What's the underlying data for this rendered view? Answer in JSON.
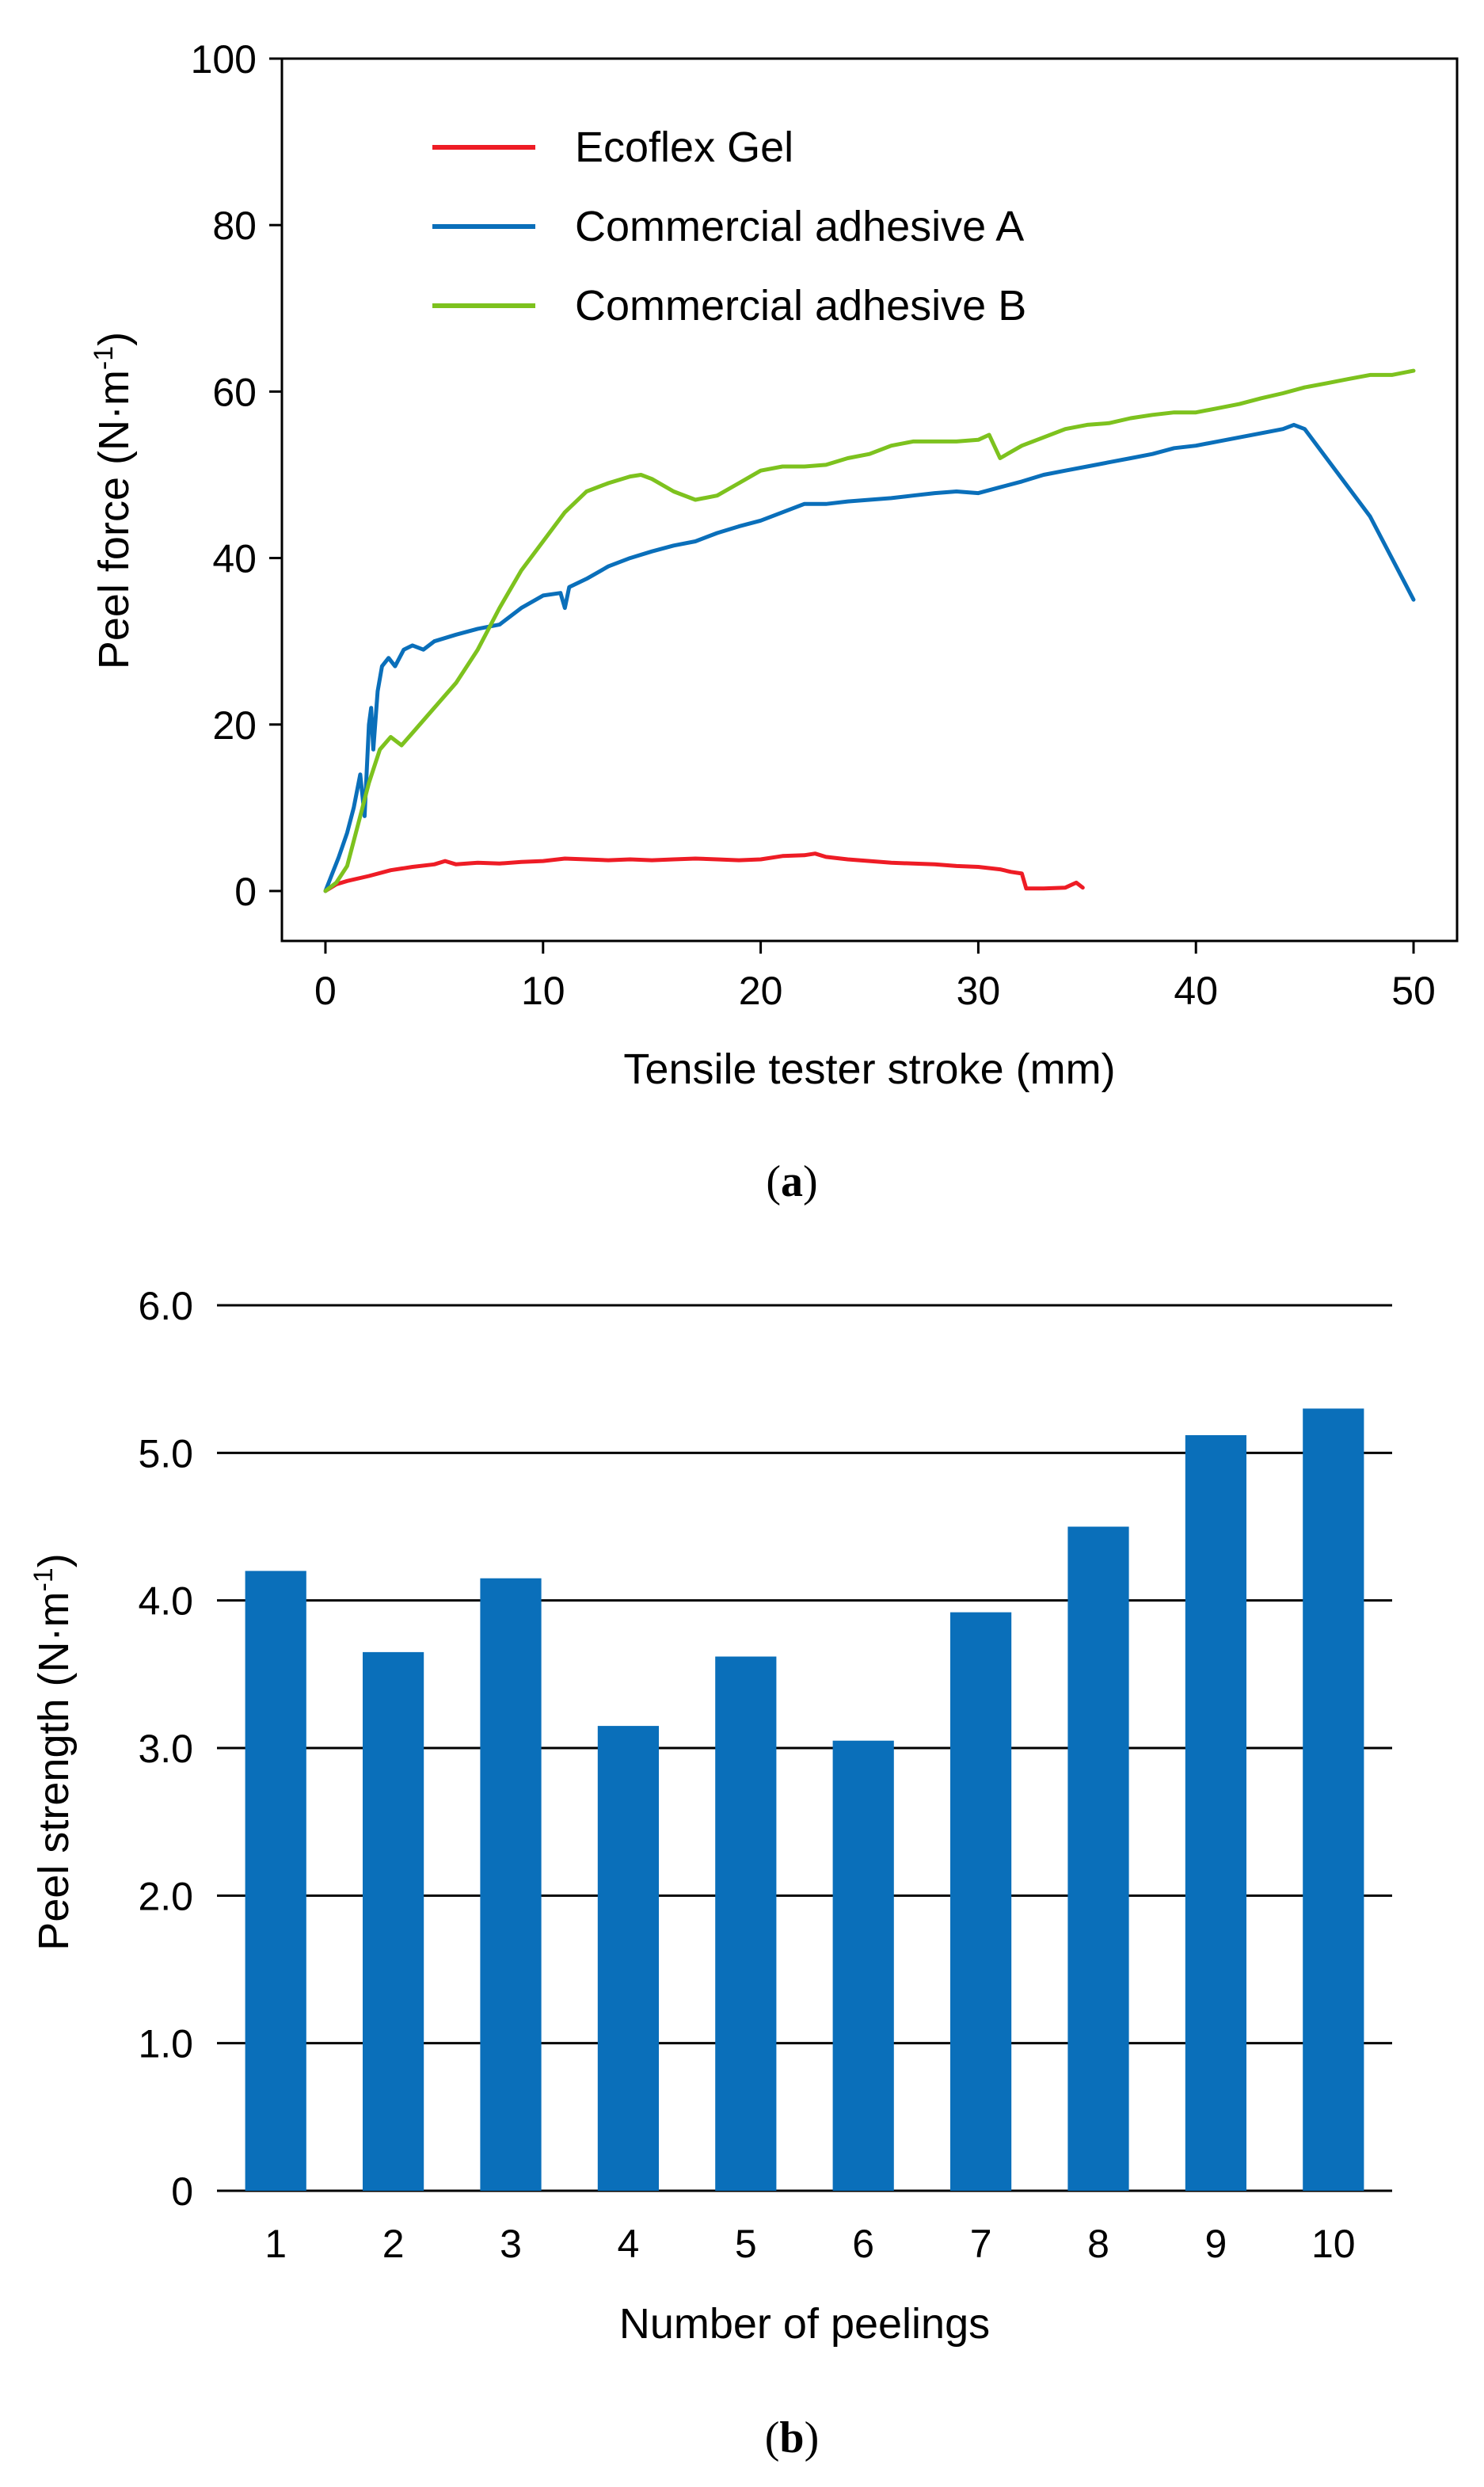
{
  "chart_data": [
    {
      "panel": "a",
      "type": "line",
      "xlabel": "Tensile tester stroke (mm)",
      "ylabel": "Peel force (N·m",
      "ylabel_sup": "-1",
      "ylabel_close": ")",
      "xlim": [
        -2,
        52
      ],
      "ylim": [
        -6,
        100
      ],
      "xticks": [
        0,
        10,
        20,
        30,
        40,
        50
      ],
      "yticks": [
        0,
        20,
        40,
        60,
        80,
        100
      ],
      "series": [
        {
          "name": "Ecoflex Gel",
          "color": "#ee1c25",
          "x": [
            0,
            0.5,
            1,
            2,
            3,
            4,
            5,
            5.5,
            6,
            7,
            8,
            9,
            10,
            11,
            12,
            13,
            14,
            15,
            16,
            17,
            18,
            19,
            20,
            21,
            22,
            22.5,
            23,
            24,
            25,
            26,
            27,
            28,
            29,
            30,
            31,
            31.5,
            32,
            32.2,
            33,
            34,
            34.5,
            34.8
          ],
          "y": [
            0,
            0.8,
            1.2,
            1.8,
            2.5,
            2.9,
            3.2,
            3.6,
            3.2,
            3.4,
            3.3,
            3.5,
            3.6,
            3.9,
            3.8,
            3.7,
            3.8,
            3.7,
            3.8,
            3.9,
            3.8,
            3.7,
            3.8,
            4.2,
            4.3,
            4.5,
            4.1,
            3.8,
            3.6,
            3.4,
            3.3,
            3.2,
            3.0,
            2.9,
            2.6,
            2.3,
            2.1,
            0.3,
            0.3,
            0.4,
            1.0,
            0.4
          ]
        },
        {
          "name": "Commercial adhesive A",
          "color": "#0a6fba",
          "x": [
            0,
            0.3,
            0.6,
            1.0,
            1.3,
            1.6,
            1.8,
            2.0,
            2.1,
            2.2,
            2.4,
            2.6,
            2.9,
            3.2,
            3.6,
            4.0,
            4.5,
            5,
            6,
            7,
            8,
            9,
            10,
            10.8,
            11.0,
            11.2,
            12,
            13,
            14,
            15,
            16,
            17,
            18,
            19,
            20,
            21,
            22,
            23,
            24,
            25,
            26,
            27,
            28,
            29,
            30,
            31,
            32,
            33,
            34,
            35,
            36,
            37,
            38,
            39,
            40,
            41,
            42,
            43,
            44,
            44.5,
            45,
            46,
            47,
            48,
            49,
            49.5,
            50
          ],
          "y": [
            0,
            2,
            4,
            7,
            10,
            14,
            9,
            20,
            22,
            17,
            24,
            27,
            28,
            27,
            29,
            29.5,
            29,
            30,
            30.8,
            31.5,
            32,
            34,
            35.5,
            35.8,
            34,
            36.5,
            37.5,
            39,
            40,
            40.8,
            41.5,
            42,
            43,
            43.8,
            44.5,
            45.5,
            46.5,
            46.5,
            46.8,
            47,
            47.2,
            47.5,
            47.8,
            48,
            47.8,
            48.5,
            49.2,
            50,
            50.5,
            51,
            51.5,
            52,
            52.5,
            53.2,
            53.5,
            54,
            54.5,
            55,
            55.5,
            56,
            55.5,
            52,
            48.5,
            45,
            40,
            37.5,
            35
          ]
        },
        {
          "name": "Commercial adhesive B",
          "color": "#7dc21e",
          "x": [
            0,
            0.5,
            1,
            1.5,
            2,
            2.5,
            3,
            3.5,
            4,
            5,
            6,
            7,
            8,
            9,
            10,
            11,
            12,
            13,
            14,
            14.5,
            15,
            16,
            17,
            18,
            19,
            20,
            21,
            22,
            23,
            24,
            25,
            26,
            27,
            28,
            29,
            30,
            30.5,
            31,
            32,
            33,
            34,
            35,
            36,
            37,
            38,
            39,
            40,
            41,
            42,
            43,
            44,
            45,
            46,
            47,
            48,
            49,
            50
          ],
          "y": [
            0,
            1,
            3,
            8,
            13,
            17,
            18.5,
            17.5,
            19,
            22,
            25,
            29,
            34,
            38.5,
            42,
            45.5,
            48,
            49,
            49.8,
            50,
            49.5,
            48,
            47,
            47.5,
            49,
            50.5,
            51,
            51,
            51.2,
            52,
            52.5,
            53.5,
            54,
            54,
            54,
            54.2,
            54.8,
            52,
            53.5,
            54.5,
            55.5,
            56,
            56.2,
            56.8,
            57.2,
            57.5,
            57.5,
            58,
            58.5,
            59.2,
            59.8,
            60.5,
            61,
            61.5,
            62,
            62,
            62.5
          ]
        }
      ]
    },
    {
      "panel": "b",
      "type": "bar",
      "xlabel": "Number of peelings",
      "ylabel": "Peel strength (N·m",
      "ylabel_sup": "-1",
      "ylabel_close": ")",
      "ylim": [
        0,
        6.0
      ],
      "categories": [
        "1",
        "2",
        "3",
        "4",
        "5",
        "6",
        "7",
        "8",
        "9",
        "10"
      ],
      "values": [
        4.2,
        3.65,
        4.15,
        3.15,
        3.62,
        3.05,
        3.92,
        4.5,
        5.12,
        5.3
      ],
      "yticks": [
        "0",
        "1.0",
        "2.0",
        "3.0",
        "4.0",
        "5.0",
        "6.0"
      ],
      "ytick_values": [
        0,
        1,
        2,
        3,
        4,
        5,
        6
      ],
      "color": "#0a6fba",
      "grid": true
    }
  ],
  "labels": {
    "a": {
      "open": "(",
      "letter": "a",
      "close": ")"
    },
    "b": {
      "open": "(",
      "letter": "b",
      "close": ")"
    }
  }
}
